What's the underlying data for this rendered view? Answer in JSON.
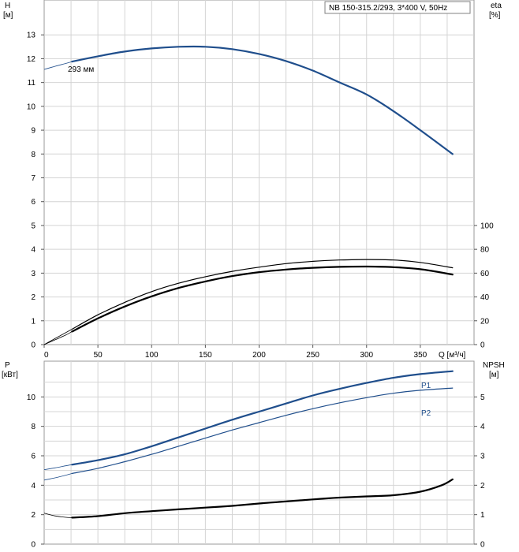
{
  "chart_data": [
    {
      "type": "line",
      "panel": "top",
      "title_box": "NB 150-315.2/293, 3*400 V, 50Hz",
      "x_axis": {
        "label": "Q [м³/ч]",
        "range": [
          0,
          400
        ],
        "ticks": [
          0,
          50,
          100,
          150,
          200,
          250,
          300,
          350
        ]
      },
      "left_axis": {
        "label_line1": "H",
        "label_line2": "[м]",
        "range": [
          0,
          14
        ],
        "ticks": [
          0,
          1,
          2,
          3,
          4,
          5,
          6,
          7,
          8,
          9,
          10,
          11,
          12,
          13
        ]
      },
      "right_axis": {
        "label_line1": "eta",
        "label_line2": "[%]",
        "range": [
          0,
          100
        ],
        "ticks": [
          0,
          20,
          40,
          60,
          80,
          100
        ]
      },
      "grid": true,
      "series": [
        {
          "name": "293 мм",
          "axis": "left",
          "color": "#1f4e8c",
          "width": 2.2,
          "x": [
            26,
            50,
            75,
            100,
            125,
            150,
            175,
            200,
            225,
            250,
            275,
            300,
            325,
            350,
            380
          ],
          "y": [
            11.88,
            12.1,
            12.3,
            12.43,
            12.5,
            12.5,
            12.4,
            12.2,
            11.9,
            11.5,
            11.0,
            10.5,
            9.8,
            9.0,
            8.0
          ],
          "ext_x": [
            0,
            10,
            20,
            26
          ],
          "ext_y": [
            11.55,
            11.68,
            11.8,
            11.88
          ]
        },
        {
          "axis": "right",
          "color": "#000000",
          "width": 1.2,
          "x": [
            26,
            50,
            75,
            100,
            125,
            150,
            175,
            200,
            225,
            250,
            275,
            300,
            325,
            350,
            380
          ],
          "y": [
            13,
            25,
            35.5,
            44.5,
            51.5,
            57,
            61.5,
            65,
            68,
            69.9,
            71,
            71.4,
            71,
            69,
            64.5
          ],
          "ext_x": [
            0,
            10,
            20,
            26
          ],
          "ext_y": [
            0,
            5,
            10,
            13
          ]
        },
        {
          "axis": "right",
          "color": "#000000",
          "width": 2.2,
          "x": [
            26,
            50,
            75,
            100,
            125,
            150,
            175,
            200,
            225,
            250,
            275,
            300,
            325,
            350,
            380
          ],
          "y": [
            11,
            22,
            32,
            40.5,
            47.5,
            53,
            57.5,
            60.8,
            63,
            64.5,
            65.3,
            65.5,
            65,
            63.3,
            58.8
          ],
          "ext_x": [
            0,
            10,
            20,
            26
          ],
          "ext_y": [
            0,
            4,
            8,
            11
          ]
        }
      ]
    },
    {
      "type": "line",
      "panel": "bottom",
      "x_axis": {
        "range": [
          0,
          400
        ]
      },
      "left_axis": {
        "label_line1": "P",
        "label_line2": "[кВт]",
        "range": [
          0,
          12
        ],
        "ticks": [
          0,
          2,
          4,
          6,
          8,
          10
        ]
      },
      "right_axis": {
        "label_line1": "NPSH",
        "label_line2": "[м]",
        "range": [
          0,
          6
        ],
        "ticks": [
          0,
          1,
          2,
          3,
          4,
          5
        ]
      },
      "grid": true,
      "series": [
        {
          "name": "P1",
          "axis": "left",
          "color": "#1f4e8c",
          "width": 2.2,
          "x": [
            26,
            50,
            75,
            100,
            125,
            150,
            175,
            200,
            225,
            250,
            275,
            300,
            325,
            350,
            380
          ],
          "y": [
            5.4,
            5.7,
            6.1,
            6.65,
            7.25,
            7.85,
            8.45,
            9.0,
            9.55,
            10.1,
            10.55,
            10.95,
            11.3,
            11.55,
            11.75
          ],
          "ext_x": [
            0,
            10,
            20,
            26
          ],
          "ext_y": [
            5.05,
            5.18,
            5.32,
            5.4
          ]
        },
        {
          "name": "P2",
          "axis": "left",
          "color": "#1f4e8c",
          "width": 1.2,
          "x": [
            26,
            50,
            75,
            100,
            125,
            150,
            175,
            200,
            225,
            250,
            275,
            300,
            325,
            350,
            380
          ],
          "y": [
            4.8,
            5.15,
            5.6,
            6.1,
            6.65,
            7.2,
            7.75,
            8.25,
            8.75,
            9.2,
            9.6,
            9.95,
            10.25,
            10.45,
            10.6
          ],
          "ext_x": [
            0,
            10,
            20,
            26
          ],
          "ext_y": [
            4.35,
            4.5,
            4.68,
            4.8
          ]
        },
        {
          "axis": "right",
          "color": "#000000",
          "width": 2.2,
          "x": [
            26,
            50,
            75,
            100,
            125,
            150,
            175,
            200,
            225,
            250,
            275,
            300,
            325,
            350,
            370,
            380
          ],
          "y": [
            0.9,
            0.95,
            1.05,
            1.12,
            1.18,
            1.24,
            1.3,
            1.38,
            1.45,
            1.52,
            1.58,
            1.62,
            1.66,
            1.78,
            2.0,
            2.2
          ],
          "ext_x": [
            0,
            10,
            20,
            26
          ],
          "ext_y": [
            1.05,
            0.96,
            0.91,
            0.9
          ]
        }
      ]
    }
  ]
}
